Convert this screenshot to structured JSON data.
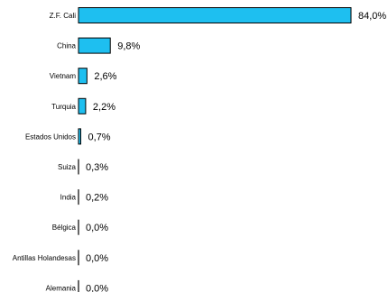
{
  "chart_data": {
    "type": "bar",
    "orientation": "horizontal",
    "categories": [
      "Z.F. Cali",
      "China",
      "Vietnam",
      "Turquia",
      "Estados Unidos",
      "Suiza",
      "India",
      "Bélgica",
      "Antillas Holandesas",
      "Alemania"
    ],
    "values": [
      84.0,
      9.8,
      2.6,
      2.2,
      0.7,
      0.3,
      0.2,
      0.0,
      0.0,
      0.0
    ],
    "value_labels": [
      "84,0%",
      "9,8%",
      "2,6%",
      "2,2%",
      "0,7%",
      "0,3%",
      "0,2%",
      "0,0%",
      "0,0%",
      "0,0%"
    ],
    "bar_color": "#1EBFF0",
    "bar_outline_color": "#000000",
    "xlim": [
      0,
      84
    ],
    "grid": false,
    "legend": "none"
  }
}
